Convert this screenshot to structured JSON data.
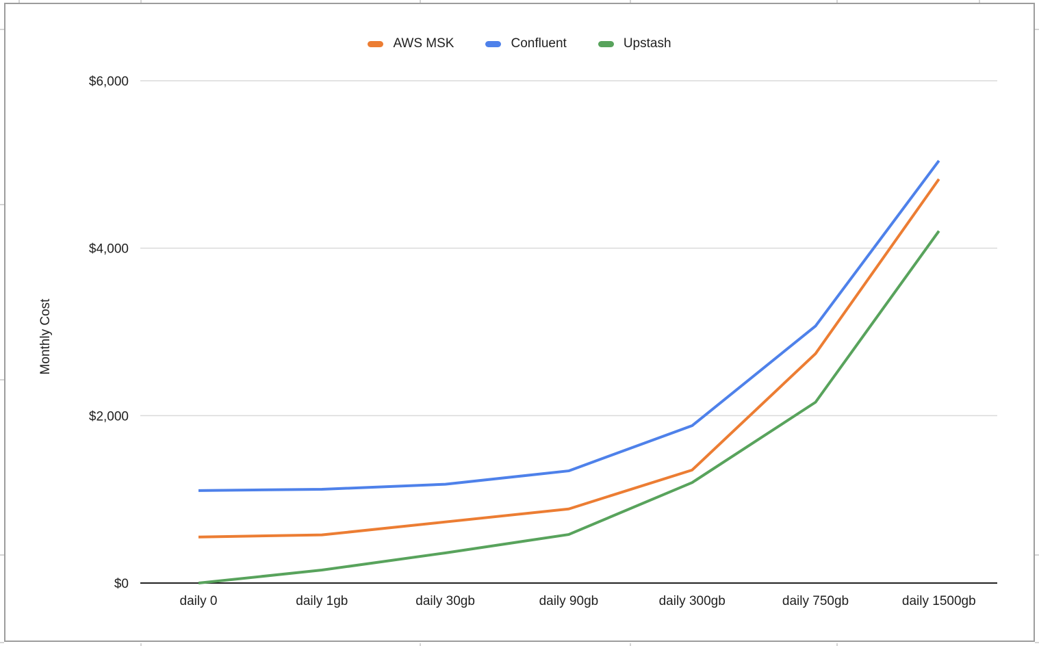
{
  "chart_data": {
    "type": "line",
    "title": "",
    "categories": [
      "daily 0",
      "daily 1gb",
      "daily 30gb",
      "daily 90gb",
      "daily 300gb",
      "daily 750gb",
      "daily 1500gb"
    ],
    "series": [
      {
        "name": "AWS MSK",
        "color": "#EC7D33",
        "values": [
          550,
          575,
          730,
          885,
          1350,
          2740,
          4825
        ]
      },
      {
        "name": "Confluent",
        "color": "#4E81EA",
        "values": [
          1105,
          1120,
          1180,
          1340,
          1880,
          3070,
          5045
        ]
      },
      {
        "name": "Upstash",
        "color": "#58A35C",
        "values": [
          0,
          155,
          360,
          580,
          1200,
          2160,
          4205
        ]
      }
    ],
    "xlabel": "",
    "ylabel": "Monthly Cost",
    "ylim": [
      0,
      6000
    ],
    "yticks": [
      {
        "value": 0,
        "label": "$0"
      },
      {
        "value": 2000,
        "label": "$2,000"
      },
      {
        "value": 4000,
        "label": "$4,000"
      },
      {
        "value": 6000,
        "label": "$6,000"
      }
    ],
    "grid": true,
    "legend_position": "top",
    "colors": {
      "gridline": "#dadada",
      "axis_line": "#212121",
      "tick_text": "#1f1f1f",
      "frame_border": "#9c9c9c",
      "background": "#ffffff"
    }
  }
}
